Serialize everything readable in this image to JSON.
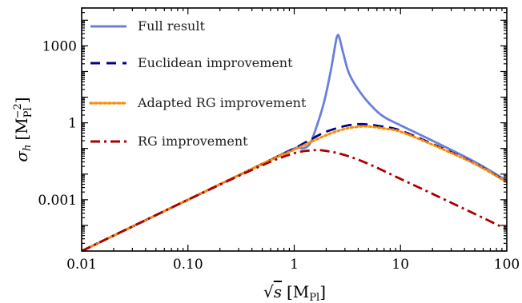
{
  "chart_data": {
    "type": "line",
    "title": "",
    "xlabel": "√s [M_Pl]",
    "ylabel": "σ_h [M_Pl^-2]",
    "x_scale": "log",
    "y_scale": "log",
    "xlim": [
      0.01,
      100
    ],
    "ylim": [
      1e-05,
      30000
    ],
    "x_ticks": [
      {
        "value": 0.01,
        "label": "0.01"
      },
      {
        "value": 0.1,
        "label": "0.10"
      },
      {
        "value": 1,
        "label": "1"
      },
      {
        "value": 10,
        "label": "10"
      },
      {
        "value": 100,
        "label": "100"
      }
    ],
    "y_ticks": [
      {
        "value": 0.001,
        "label": "0.001"
      },
      {
        "value": 1,
        "label": "1"
      },
      {
        "value": 1000,
        "label": "1000"
      }
    ],
    "grid": false,
    "legend_position": "top-left",
    "series": [
      {
        "name": "Full result",
        "color": "#6a7fdb",
        "dash": "solid",
        "points": [
          [
            0.01,
            1e-05
          ],
          [
            0.1,
            0.001
          ],
          [
            0.5,
            0.025
          ],
          [
            1.0,
            0.1
          ],
          [
            1.2,
            0.1
          ],
          [
            1.4,
            0.15
          ],
          [
            1.6,
            0.6
          ],
          [
            1.9,
            6
          ],
          [
            2.2,
            100
          ],
          [
            2.45,
            1300
          ],
          [
            2.55,
            2500
          ],
          [
            2.65,
            2200
          ],
          [
            2.9,
            500
          ],
          [
            3.3,
            80
          ],
          [
            4.2,
            15
          ],
          [
            5.5,
            4
          ],
          [
            7,
            1.7
          ],
          [
            10,
            0.8
          ],
          [
            20,
            0.2
          ],
          [
            50,
            0.03
          ],
          [
            100,
            0.0055
          ]
        ]
      },
      {
        "name": "Euclidean improvement",
        "color": "#00008b",
        "dash": "dashed",
        "points": [
          [
            0.01,
            1e-05
          ],
          [
            0.1,
            0.001
          ],
          [
            0.5,
            0.025
          ],
          [
            1.0,
            0.1
          ],
          [
            1.5,
            0.25
          ],
          [
            2.0,
            0.45
          ],
          [
            3.0,
            0.75
          ],
          [
            4.0,
            0.88
          ],
          [
            5.0,
            0.85
          ],
          [
            7,
            0.7
          ],
          [
            10,
            0.5
          ],
          [
            20,
            0.15
          ],
          [
            50,
            0.026
          ],
          [
            100,
            0.005
          ]
        ]
      },
      {
        "name": "Adapted RG improvement",
        "color": "#ff8c00",
        "dash": "dotted",
        "points": [
          [
            0.01,
            1e-05
          ],
          [
            0.1,
            0.001
          ],
          [
            0.5,
            0.025
          ],
          [
            1.0,
            0.09
          ],
          [
            2.0,
            0.33
          ],
          [
            3.0,
            0.58
          ],
          [
            4.0,
            0.7
          ],
          [
            5.0,
            0.72
          ],
          [
            7,
            0.6
          ],
          [
            10,
            0.45
          ],
          [
            20,
            0.14
          ],
          [
            50,
            0.025
          ],
          [
            100,
            0.0048
          ]
        ]
      },
      {
        "name": "RG improvement",
        "color": "#aa0000",
        "dash": "dashdot",
        "points": [
          [
            0.01,
            1e-05
          ],
          [
            0.1,
            0.001
          ],
          [
            0.5,
            0.022
          ],
          [
            1.0,
            0.065
          ],
          [
            1.5,
            0.085
          ],
          [
            2.0,
            0.08
          ],
          [
            3.0,
            0.055
          ],
          [
            5.0,
            0.025
          ],
          [
            10,
            0.0065
          ],
          [
            20,
            0.0017
          ],
          [
            50,
            0.00028
          ],
          [
            100,
            7e-05
          ]
        ]
      }
    ]
  }
}
